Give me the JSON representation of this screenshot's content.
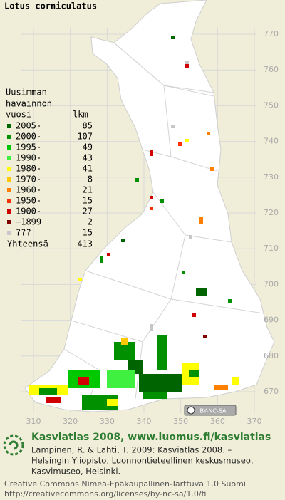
{
  "title": "Lotus corniculatus",
  "legend": {
    "header": [
      "Uusimman",
      "havainnon",
      "vuosi"
    ],
    "count_header": "lkm",
    "rows": [
      {
        "label": "2005-",
        "count": 85,
        "color": "#006400"
      },
      {
        "label": "2000-",
        "count": 107,
        "color": "#009000"
      },
      {
        "label": "1995-",
        "count": 49,
        "color": "#00c800"
      },
      {
        "label": "1990-",
        "count": 43,
        "color": "#40f040"
      },
      {
        "label": "1980-",
        "count": 41,
        "color": "#ffff00"
      },
      {
        "label": "1970-",
        "count": 8,
        "color": "#ffc800"
      },
      {
        "label": "1960-",
        "count": 21,
        "color": "#ff8000"
      },
      {
        "label": "1950-",
        "count": 15,
        "color": "#ff3000"
      },
      {
        "label": "1900-",
        "count": 27,
        "color": "#d00000"
      },
      {
        "label": "−1899",
        "count": 2,
        "color": "#800000"
      },
      {
        "label": "???",
        "count": 15,
        "color": "#c8c8c8"
      }
    ],
    "total_label": "Yhteensä",
    "total": 413
  },
  "map": {
    "x_ticks": [
      310,
      320,
      330,
      340,
      350,
      360,
      370
    ],
    "y_ticks": [
      770,
      760,
      750,
      740,
      730,
      720,
      710,
      700,
      690,
      680,
      670
    ]
  },
  "license_badge": "BY-NC-SA",
  "footer": {
    "link": "Kasviatlas 2008, www.luomus.fi/kasviatlas",
    "citation": [
      "Lampinen, R. & Lahti, T. 2009: Kasviatlas 2008. –",
      "Helsingin Yliopisto, Luonnontieteellinen keskusmuseo,",
      "Kasvimuseo, Helsinki."
    ],
    "license": [
      "Creative Commons Nimeä-Epäkaupallinen-Tarttuva 1.0 Suomi",
      "http://creativecommons.org/licenses/by-nc-sa/1.0/fi"
    ]
  }
}
